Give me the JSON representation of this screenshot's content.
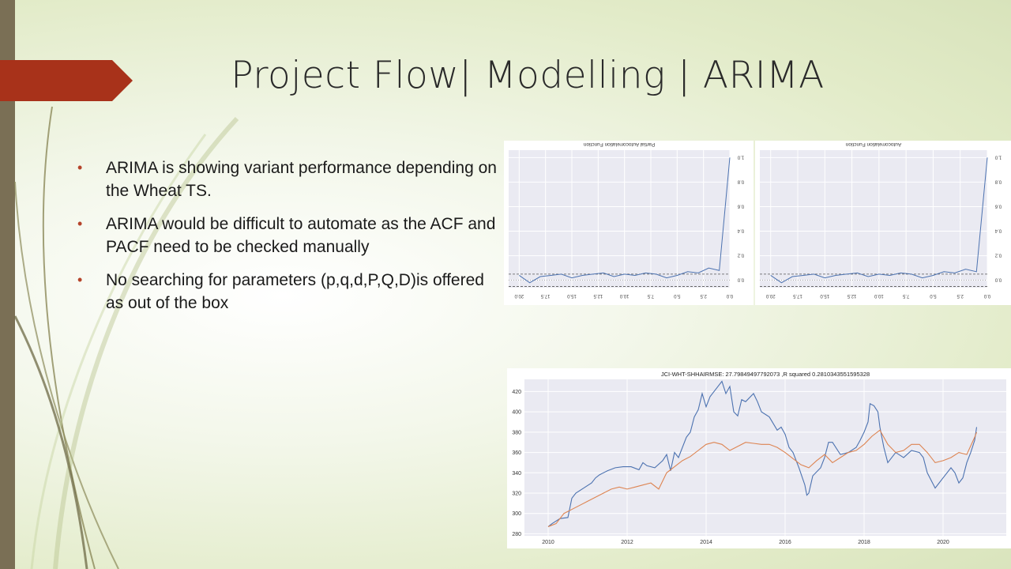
{
  "slide": {
    "title": "Project Flow| Modelling | ARIMA",
    "bullets": [
      "ARIMA is showing variant performance depending on the Wheat TS.",
      "ARIMA would be difficult to automate as the ACF and PACF need to be checked manually",
      "No searching for parameters (p,q,d,P,Q,D)is offered as out of the box"
    ]
  },
  "colors": {
    "accent_arrow": "#a8321a",
    "left_bar": "#7a6f55",
    "bullet": "#b5432a",
    "series_actual": "#4c72b0",
    "series_pred": "#dd8452"
  },
  "chart_data": [
    {
      "type": "line",
      "title": "Partial Autocorrelation Function",
      "mirrored": true,
      "x": [
        0,
        1,
        2,
        3,
        4,
        5,
        6,
        7,
        8,
        9,
        10,
        11,
        12,
        13,
        14,
        15,
        16,
        17,
        18,
        19,
        20
      ],
      "values": [
        1.0,
        0.08,
        0.1,
        0.06,
        0.07,
        0.04,
        0.02,
        0.05,
        0.06,
        0.04,
        0.05,
        0.03,
        0.06,
        0.05,
        0.04,
        0.02,
        0.05,
        0.04,
        0.03,
        -0.02,
        0.04
      ],
      "xticks": [
        "0.0",
        "2.5",
        "5.0",
        "7.5",
        "10.0",
        "12.5",
        "15.0",
        "17.5",
        "20.0"
      ],
      "yticks": [
        "0.0",
        "0.2",
        "0.4",
        "0.6",
        "0.8",
        "1.0"
      ],
      "xlim": [
        0,
        21
      ],
      "ylim": [
        -0.06,
        1.06
      ],
      "confidence": [
        0.05,
        -0.05
      ]
    },
    {
      "type": "line",
      "title": "Autocorrelation Function",
      "mirrored": true,
      "x": [
        0,
        1,
        2,
        3,
        4,
        5,
        6,
        7,
        8,
        9,
        10,
        11,
        12,
        13,
        14,
        15,
        16,
        17,
        18,
        19,
        20
      ],
      "values": [
        1.0,
        0.07,
        0.09,
        0.06,
        0.07,
        0.04,
        0.02,
        0.05,
        0.06,
        0.04,
        0.05,
        0.03,
        0.06,
        0.05,
        0.04,
        0.02,
        0.05,
        0.04,
        0.03,
        -0.02,
        0.04
      ],
      "xticks": [
        "0.0",
        "2.5",
        "5.0",
        "7.5",
        "10.0",
        "12.5",
        "15.0",
        "17.5",
        "20.0"
      ],
      "yticks": [
        "0.0",
        "0.2",
        "0.4",
        "0.6",
        "0.8",
        "1.0"
      ],
      "xlim": [
        0,
        21
      ],
      "ylim": [
        -0.06,
        1.06
      ],
      "confidence": [
        0.05,
        -0.05
      ]
    },
    {
      "type": "line",
      "title": "JCI-WHT-SHHAIRMSE: 27.79849497792073 ,R squared 0.2810343551595328",
      "xticks": [
        "2010",
        "2012",
        "2014",
        "2016",
        "2018",
        "2020"
      ],
      "yticks": [
        "280",
        "300",
        "320",
        "340",
        "360",
        "380",
        "400",
        "420"
      ],
      "xlim": [
        2009.4,
        2021.6
      ],
      "ylim": [
        278,
        432
      ],
      "series": [
        {
          "values": [
            [
              2010.0,
              287
            ],
            [
              2010.1,
              290
            ],
            [
              2010.3,
              295
            ],
            [
              2010.5,
              296
            ],
            [
              2010.6,
              315
            ],
            [
              2010.7,
              320
            ],
            [
              2010.9,
              325
            ],
            [
              2011.1,
              330
            ],
            [
              2011.2,
              335
            ],
            [
              2011.3,
              338
            ],
            [
              2011.5,
              342
            ],
            [
              2011.7,
              345
            ],
            [
              2011.9,
              346
            ],
            [
              2012.1,
              346
            ],
            [
              2012.3,
              343
            ],
            [
              2012.4,
              350
            ],
            [
              2012.5,
              347
            ],
            [
              2012.7,
              345
            ],
            [
              2012.9,
              352
            ],
            [
              2013.0,
              358
            ],
            [
              2013.1,
              342
            ],
            [
              2013.2,
              360
            ],
            [
              2013.3,
              355
            ],
            [
              2013.5,
              375
            ],
            [
              2013.6,
              380
            ],
            [
              2013.7,
              395
            ],
            [
              2013.8,
              402
            ],
            [
              2013.9,
              418
            ],
            [
              2014.0,
              405
            ],
            [
              2014.1,
              415
            ],
            [
              2014.2,
              420
            ],
            [
              2014.4,
              430
            ],
            [
              2014.5,
              418
            ],
            [
              2014.6,
              425
            ],
            [
              2014.7,
              400
            ],
            [
              2014.8,
              396
            ],
            [
              2014.9,
              412
            ],
            [
              2015.0,
              410
            ],
            [
              2015.2,
              418
            ],
            [
              2015.3,
              410
            ],
            [
              2015.4,
              400
            ],
            [
              2015.6,
              395
            ],
            [
              2015.8,
              382
            ],
            [
              2015.9,
              385
            ],
            [
              2016.0,
              378
            ],
            [
              2016.1,
              365
            ],
            [
              2016.2,
              360
            ],
            [
              2016.35,
              345
            ],
            [
              2016.5,
              328
            ],
            [
              2016.55,
              318
            ],
            [
              2016.6,
              320
            ],
            [
              2016.7,
              337
            ],
            [
              2016.9,
              345
            ],
            [
              2017.0,
              355
            ],
            [
              2017.1,
              370
            ],
            [
              2017.2,
              370
            ],
            [
              2017.4,
              358
            ],
            [
              2017.6,
              360
            ],
            [
              2017.8,
              365
            ],
            [
              2017.9,
              372
            ],
            [
              2018.0,
              380
            ],
            [
              2018.1,
              390
            ],
            [
              2018.15,
              408
            ],
            [
              2018.25,
              406
            ],
            [
              2018.35,
              400
            ],
            [
              2018.4,
              385
            ],
            [
              2018.5,
              365
            ],
            [
              2018.6,
              350
            ],
            [
              2018.8,
              360
            ],
            [
              2019.0,
              355
            ],
            [
              2019.2,
              362
            ],
            [
              2019.4,
              360
            ],
            [
              2019.5,
              355
            ],
            [
              2019.6,
              340
            ],
            [
              2019.8,
              325
            ],
            [
              2019.9,
              330
            ],
            [
              2020.0,
              335
            ],
            [
              2020.2,
              345
            ],
            [
              2020.3,
              340
            ],
            [
              2020.4,
              330
            ],
            [
              2020.5,
              335
            ],
            [
              2020.6,
              350
            ],
            [
              2020.7,
              360
            ],
            [
              2020.8,
              372
            ],
            [
              2020.85,
              385
            ]
          ]
        },
        {
          "values": [
            [
              2010.0,
              287
            ],
            [
              2010.2,
              290
            ],
            [
              2010.4,
              300
            ],
            [
              2010.6,
              304
            ],
            [
              2010.8,
              308
            ],
            [
              2011.0,
              312
            ],
            [
              2011.2,
              316
            ],
            [
              2011.4,
              320
            ],
            [
              2011.6,
              324
            ],
            [
              2011.8,
              326
            ],
            [
              2012.0,
              324
            ],
            [
              2012.2,
              326
            ],
            [
              2012.4,
              328
            ],
            [
              2012.6,
              330
            ],
            [
              2012.8,
              324
            ],
            [
              2013.0,
              340
            ],
            [
              2013.2,
              346
            ],
            [
              2013.4,
              352
            ],
            [
              2013.6,
              356
            ],
            [
              2013.8,
              362
            ],
            [
              2014.0,
              368
            ],
            [
              2014.2,
              370
            ],
            [
              2014.4,
              368
            ],
            [
              2014.6,
              362
            ],
            [
              2014.8,
              366
            ],
            [
              2015.0,
              370
            ],
            [
              2015.2,
              369
            ],
            [
              2015.4,
              368
            ],
            [
              2015.6,
              368
            ],
            [
              2015.8,
              365
            ],
            [
              2016.0,
              360
            ],
            [
              2016.2,
              354
            ],
            [
              2016.4,
              348
            ],
            [
              2016.6,
              345
            ],
            [
              2016.8,
              352
            ],
            [
              2017.0,
              358
            ],
            [
              2017.2,
              350
            ],
            [
              2017.4,
              355
            ],
            [
              2017.6,
              360
            ],
            [
              2017.8,
              362
            ],
            [
              2018.0,
              368
            ],
            [
              2018.2,
              376
            ],
            [
              2018.4,
              382
            ],
            [
              2018.6,
              368
            ],
            [
              2018.8,
              360
            ],
            [
              2019.0,
              362
            ],
            [
              2019.2,
              368
            ],
            [
              2019.4,
              368
            ],
            [
              2019.6,
              360
            ],
            [
              2019.8,
              350
            ],
            [
              2020.0,
              352
            ],
            [
              2020.2,
              355
            ],
            [
              2020.4,
              360
            ],
            [
              2020.6,
              358
            ],
            [
              2020.8,
              375
            ],
            [
              2020.85,
              380
            ]
          ]
        }
      ]
    }
  ]
}
